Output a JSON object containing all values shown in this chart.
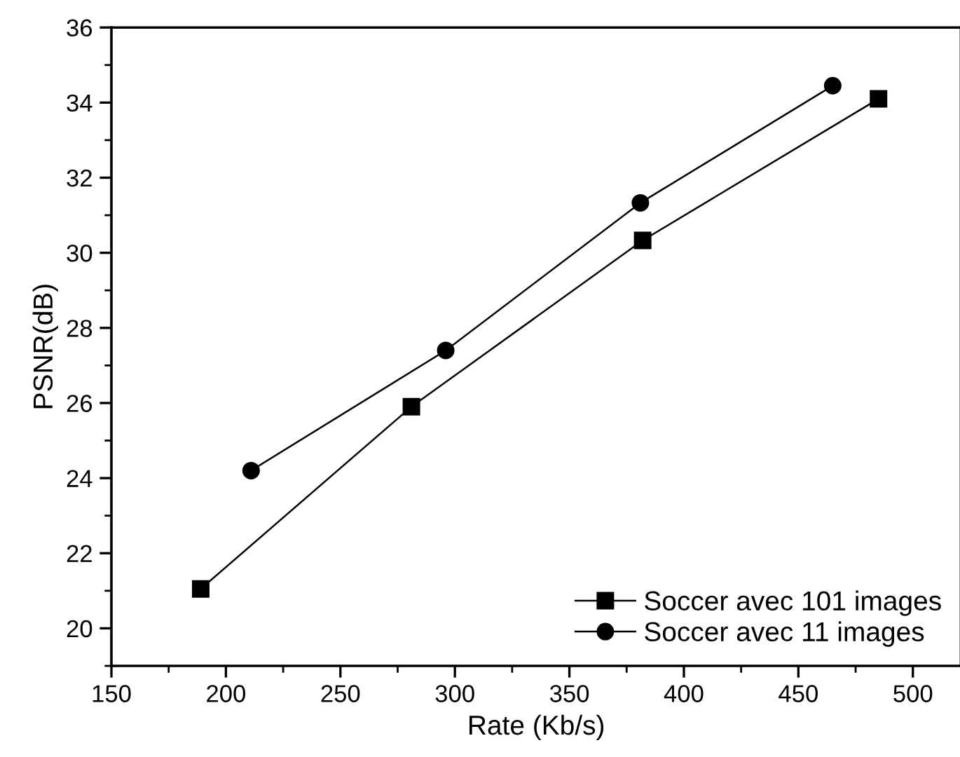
{
  "chart_data": {
    "type": "line",
    "xlabel": "Rate (Kb/s)",
    "ylabel": "PSNR(dB)",
    "xlim": [
      150,
      521
    ],
    "xticks": [
      150,
      200,
      250,
      300,
      350,
      400,
      450,
      500
    ],
    "ylim": [
      19,
      36
    ],
    "yticks": [
      20,
      22,
      24,
      26,
      28,
      30,
      32,
      34,
      36
    ],
    "grid": false,
    "legend": "bottom right",
    "line_style": "solid",
    "series": [
      {
        "name": "Soccer avec 101 images",
        "color": "#000000",
        "marker": "square",
        "x": [
          189,
          281,
          382,
          485
        ],
        "values": [
          21.05,
          25.9,
          30.33,
          34.1
        ]
      },
      {
        "name": "Soccer avec 11 images",
        "color": "#000000",
        "marker": "circle",
        "x": [
          211,
          296,
          381,
          465
        ],
        "values": [
          24.2,
          27.4,
          31.33,
          34.45
        ]
      }
    ]
  }
}
